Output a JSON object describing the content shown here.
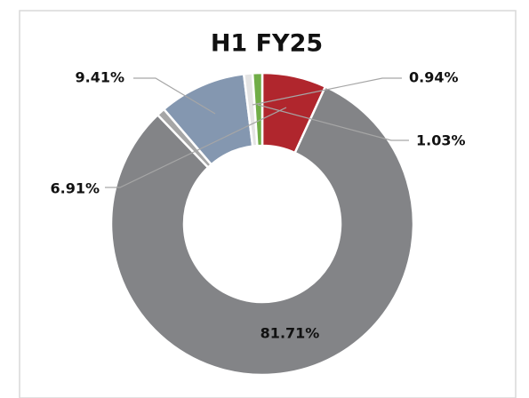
{
  "chart_data": {
    "type": "donut",
    "title": "H1 FY25",
    "categories": [
      null,
      null,
      null,
      null,
      null,
      null
    ],
    "values": [
      6.91,
      81.71,
      0.9,
      9.41,
      0.94,
      1.03
    ],
    "value_labels": [
      "6.91%",
      "81.71%",
      null,
      "9.41%",
      "0.94%",
      "1.03%"
    ],
    "colors": [
      "#b0262d",
      "#838487",
      "#a6a6a6",
      "#8497b0",
      "#e4e4e4",
      "#70ad47"
    ]
  }
}
